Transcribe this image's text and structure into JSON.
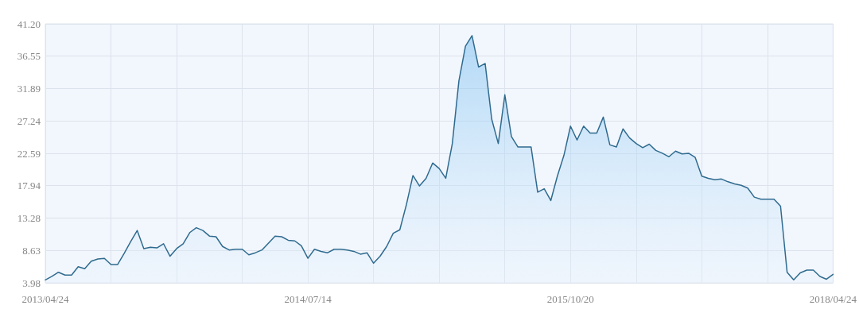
{
  "chart_data": {
    "type": "area",
    "categories": [
      "2013/04/24",
      null,
      null,
      null,
      null,
      null,
      null,
      null,
      null,
      null,
      null,
      null,
      null,
      null,
      null,
      null,
      null,
      null,
      null,
      null,
      null,
      null,
      null,
      null,
      null,
      null,
      null,
      null,
      null,
      null,
      null,
      null,
      null,
      null,
      null,
      null,
      null,
      null,
      null,
      null,
      "2014/07/14",
      null,
      null,
      null,
      null,
      null,
      null,
      null,
      null,
      null,
      null,
      null,
      null,
      null,
      null,
      null,
      null,
      null,
      null,
      null,
      null,
      null,
      null,
      null,
      null,
      null,
      null,
      null,
      null,
      null,
      null,
      null,
      null,
      null,
      null,
      null,
      null,
      null,
      null,
      null,
      "2015/10/20",
      null,
      null,
      null,
      null,
      null,
      null,
      null,
      null,
      null,
      null,
      null,
      null,
      null,
      null,
      null,
      null,
      null,
      null,
      null,
      null,
      null,
      null,
      null,
      null,
      null,
      null,
      null,
      null,
      null,
      null,
      null,
      null,
      null,
      null,
      null,
      null,
      null,
      null,
      null,
      "2018/04/24"
    ],
    "series": [
      {
        "color": "#2f6b8f",
        "values": [
          4.4,
          4.9,
          5.5,
          5.1,
          5.1,
          6.3,
          6.0,
          7.1,
          7.4,
          7.5,
          6.6,
          6.6,
          8.2,
          9.9,
          11.5,
          8.9,
          9.1,
          9.0,
          9.6,
          7.8,
          8.9,
          9.6,
          11.2,
          11.9,
          11.5,
          10.7,
          10.6,
          9.2,
          8.7,
          8.8,
          8.8,
          8.0,
          8.3,
          8.7,
          9.7,
          10.7,
          10.6,
          10.1,
          10.0,
          9.3,
          7.5,
          8.8,
          8.5,
          8.3,
          8.8,
          8.8,
          8.7,
          8.5,
          8.1,
          8.3,
          6.8,
          7.8,
          9.2,
          11.1,
          11.6,
          15.2,
          19.4,
          17.9,
          19.0,
          21.2,
          20.4,
          19.0,
          24.0,
          33.0,
          38.0,
          39.5,
          35.0,
          35.5,
          27.5,
          24.0,
          31.0,
          25.0,
          23.5,
          23.5,
          23.5,
          17.0,
          17.5,
          15.8,
          19.3,
          22.3,
          26.5,
          24.5,
          26.5,
          25.5,
          25.5,
          27.8,
          23.8,
          23.5,
          26.1,
          24.8,
          24.0,
          23.4,
          23.9,
          23.0,
          22.6,
          22.1,
          22.9,
          22.5,
          22.6,
          22.0,
          19.3,
          19.0,
          18.8,
          18.9,
          18.5,
          18.2,
          18.0,
          17.6,
          16.3,
          16.0,
          16.0,
          16.0,
          15.0,
          5.5,
          4.4,
          5.4,
          5.8,
          5.8,
          4.9,
          4.5,
          5.2
        ]
      }
    ],
    "ylim": [
      3.98,
      41.2
    ],
    "yticks": [
      3.98,
      8.63,
      13.28,
      17.94,
      22.59,
      27.24,
      31.89,
      36.55,
      {
        "value": 41.2,
        "label": "41.20"
      }
    ],
    "grid": true,
    "marker": "none",
    "line_style": "solid"
  }
}
